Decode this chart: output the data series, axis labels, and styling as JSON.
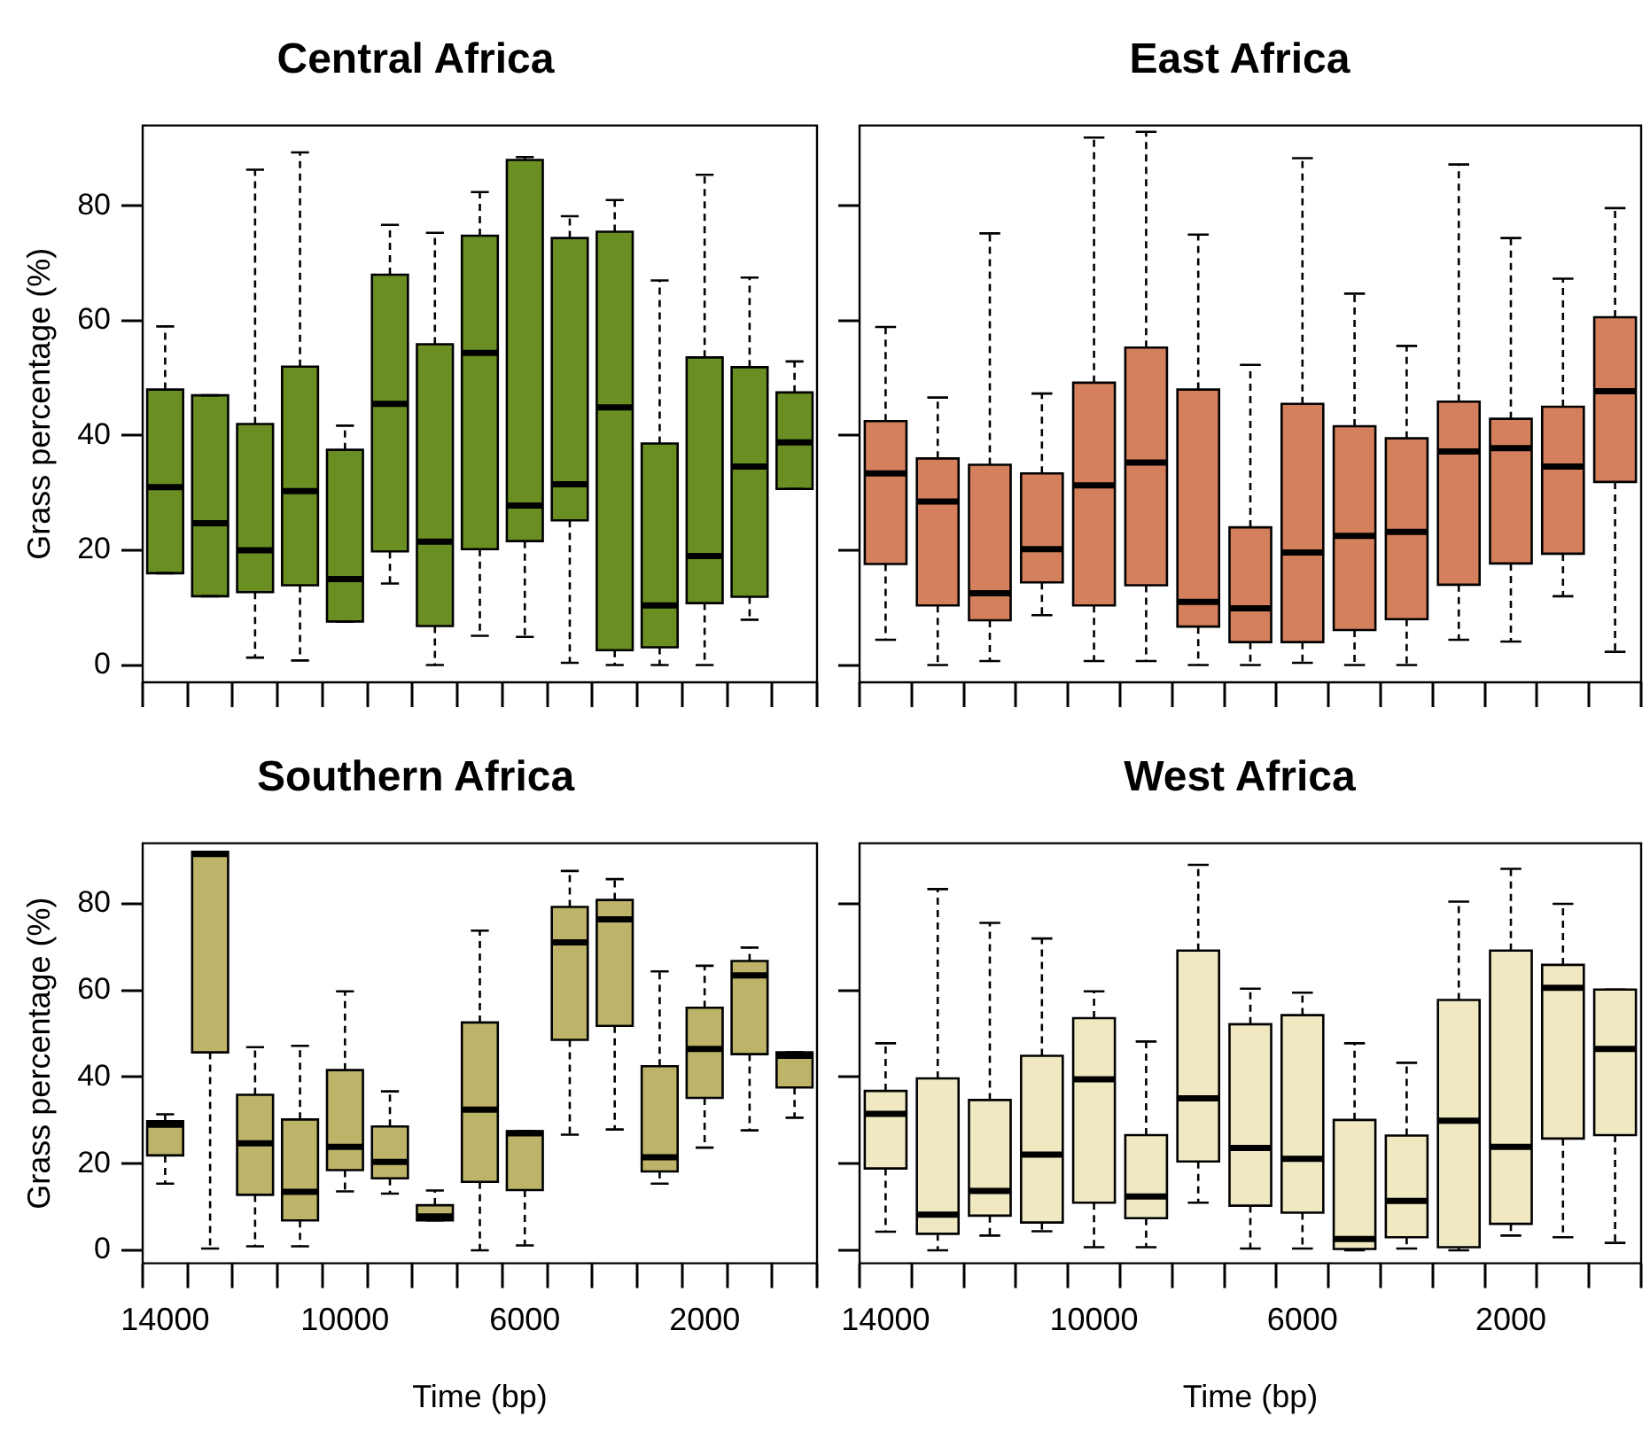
{
  "chart_data": [
    {
      "type": "box",
      "title": "Central Africa",
      "ylabel": "Grass percentage (%)",
      "categories": [
        "14000",
        null,
        null,
        null,
        "10000",
        null,
        null,
        null,
        "6000",
        null,
        null,
        null,
        "2000",
        null,
        null
      ],
      "color": "#6b8e23",
      "ylim": [
        -3,
        94
      ],
      "yticks": [
        0,
        20,
        40,
        60,
        80
      ],
      "tick_labels": "y",
      "boxes": [
        {
          "low": 16,
          "q1": 16,
          "median": 31,
          "q3": 48,
          "high": 59
        },
        {
          "low": 12,
          "q1": 12,
          "median": 24.7,
          "q3": 47,
          "high": 47
        },
        {
          "low": 1.3,
          "q1": 12.7,
          "median": 20,
          "q3": 42,
          "high": 86.3
        },
        {
          "low": 0.8,
          "q1": 13.9,
          "median": 30.3,
          "q3": 52,
          "high": 89.3
        },
        {
          "low": 7.6,
          "q1": 7.6,
          "median": 15,
          "q3": 37.5,
          "high": 41.7
        },
        {
          "low": 14.2,
          "q1": 19.8,
          "median": 45.5,
          "q3": 68,
          "high": 76.7
        },
        {
          "low": 0,
          "q1": 6.8,
          "median": 21.5,
          "q3": 55.9,
          "high": 75.3
        },
        {
          "low": 5.1,
          "q1": 20.2,
          "median": 54.4,
          "q3": 74.8,
          "high": 82.4
        },
        {
          "low": 4.9,
          "q1": 21.6,
          "median": 27.8,
          "q3": 88,
          "high": 88.5
        },
        {
          "low": 0.4,
          "q1": 25.2,
          "median": 31.5,
          "q3": 74.4,
          "high": 78.2
        },
        {
          "low": 0,
          "q1": 2.6,
          "median": 44.9,
          "q3": 75.5,
          "high": 81
        },
        {
          "low": 0,
          "q1": 3.1,
          "median": 10.4,
          "q3": 38.6,
          "high": 67
        },
        {
          "low": 0,
          "q1": 10.8,
          "median": 19,
          "q3": 53.6,
          "high": 85.4
        },
        {
          "low": 7.9,
          "q1": 11.9,
          "median": 34.6,
          "q3": 51.9,
          "high": 67.5
        },
        {
          "low": 30.7,
          "q1": 30.7,
          "median": 38.8,
          "q3": 47.5,
          "high": 52.9
        }
      ]
    },
    {
      "type": "box",
      "title": "East Africa",
      "categories": [
        "14000",
        null,
        null,
        null,
        "10000",
        null,
        null,
        null,
        "6000",
        null,
        null,
        null,
        "2000",
        null,
        null
      ],
      "color": "#d4805c",
      "ylim": [
        -3,
        94
      ],
      "yticks": [
        0,
        20,
        40,
        60,
        80
      ],
      "tick_labels": false,
      "boxes": [
        {
          "low": 4.4,
          "q1": 17.6,
          "median": 33.4,
          "q3": 42.5,
          "high": 58.9
        },
        {
          "low": 0,
          "q1": 10.4,
          "median": 28.5,
          "q3": 36,
          "high": 46.6
        },
        {
          "low": 0.7,
          "q1": 7.8,
          "median": 12.5,
          "q3": 34.9,
          "high": 75.2
        },
        {
          "low": 8.7,
          "q1": 14.4,
          "median": 20.2,
          "q3": 33.4,
          "high": 47.3
        },
        {
          "low": 0.7,
          "q1": 10.4,
          "median": 31.3,
          "q3": 49.2,
          "high": 91.9
        },
        {
          "low": 0.7,
          "q1": 13.9,
          "median": 35.3,
          "q3": 55.3,
          "high": 92.9
        },
        {
          "low": 0,
          "q1": 6.7,
          "median": 11,
          "q3": 48,
          "high": 75
        },
        {
          "low": 0,
          "q1": 4,
          "median": 9.9,
          "q3": 24,
          "high": 52.3
        },
        {
          "low": 0.4,
          "q1": 4,
          "median": 19.6,
          "q3": 45.5,
          "high": 88.3
        },
        {
          "low": 0,
          "q1": 6.1,
          "median": 22.5,
          "q3": 41.6,
          "high": 64.7
        },
        {
          "low": 0,
          "q1": 8,
          "median": 23.2,
          "q3": 39.5,
          "high": 55.6
        },
        {
          "low": 4.4,
          "q1": 14,
          "median": 37.2,
          "q3": 45.9,
          "high": 87.2
        },
        {
          "low": 4.1,
          "q1": 17.7,
          "median": 37.8,
          "q3": 42.9,
          "high": 74.4
        },
        {
          "low": 12,
          "q1": 19.4,
          "median": 34.6,
          "q3": 45,
          "high": 67.3
        },
        {
          "low": 2.3,
          "q1": 31.9,
          "median": 47.7,
          "q3": 60.6,
          "high": 79.6
        }
      ]
    },
    {
      "type": "box",
      "title": "Southern Africa",
      "xlabel": "Time (bp)",
      "ylabel": "Grass percentage (%)",
      "categories": [
        "14000",
        null,
        null,
        null,
        "10000",
        null,
        null,
        null,
        "6000",
        null,
        null,
        null,
        "2000",
        null,
        null
      ],
      "color": "#bdb46a",
      "ylim": [
        -3,
        94
      ],
      "yticks": [
        0,
        20,
        40,
        60,
        80
      ],
      "boxes": [
        {
          "low": 15.4,
          "q1": 21.9,
          "median": 29,
          "q3": 29.8,
          "high": 31.4
        },
        {
          "low": 0.4,
          "q1": 45.7,
          "median": 91.5,
          "q3": 92,
          "high": 92
        },
        {
          "low": 0.9,
          "q1": 12.8,
          "median": 24.7,
          "q3": 35.9,
          "high": 46.9
        },
        {
          "low": 0.9,
          "q1": 6.9,
          "median": 13.5,
          "q3": 30.2,
          "high": 47.2
        },
        {
          "low": 13.6,
          "q1": 18.5,
          "median": 23.9,
          "q3": 41.6,
          "high": 59.8
        },
        {
          "low": 13.1,
          "q1": 16.6,
          "median": 20.4,
          "q3": 28.6,
          "high": 36.7
        },
        {
          "low": 6.9,
          "q1": 6.9,
          "median": 7.8,
          "q3": 10.4,
          "high": 13.8
        },
        {
          "low": 0,
          "q1": 15.8,
          "median": 32.5,
          "q3": 52.6,
          "high": 73.8
        },
        {
          "low": 1.1,
          "q1": 13.9,
          "median": 27,
          "q3": 27.5,
          "high": 27.5
        },
        {
          "low": 26.7,
          "q1": 48.6,
          "median": 71.1,
          "q3": 79.3,
          "high": 87.6
        },
        {
          "low": 27.9,
          "q1": 51.8,
          "median": 76.4,
          "q3": 80.9,
          "high": 85.7
        },
        {
          "low": 15.4,
          "q1": 18.2,
          "median": 21.5,
          "q3": 42.5,
          "high": 64.4
        },
        {
          "low": 23.7,
          "q1": 35.2,
          "median": 46.5,
          "q3": 56,
          "high": 65.7
        },
        {
          "low": 27.7,
          "q1": 45.3,
          "median": 63.5,
          "q3": 66.8,
          "high": 69.9
        },
        {
          "low": 30.6,
          "q1": 37.6,
          "median": 44.9,
          "q3": 45.7,
          "high": 45.7
        }
      ]
    },
    {
      "type": "box",
      "title": "West Africa",
      "xlabel": "Time (bp)",
      "categories": [
        "14000",
        null,
        null,
        null,
        "10000",
        null,
        null,
        null,
        "6000",
        null,
        null,
        null,
        "2000",
        null,
        null
      ],
      "color": "#efe8c0",
      "ylim": [
        -3,
        94
      ],
      "yticks": [
        0,
        20,
        40,
        60,
        80
      ],
      "tick_labels": "x",
      "boxes": [
        {
          "low": 4.3,
          "q1": 18.9,
          "median": 31.5,
          "q3": 36.8,
          "high": 47.8
        },
        {
          "low": 0,
          "q1": 3.8,
          "median": 8.2,
          "q3": 39.7,
          "high": 83.4
        },
        {
          "low": 3.4,
          "q1": 8,
          "median": 13.7,
          "q3": 34.7,
          "high": 75.6
        },
        {
          "low": 4.4,
          "q1": 6.4,
          "median": 22.1,
          "q3": 44.9,
          "high": 72
        },
        {
          "low": 0.7,
          "q1": 11,
          "median": 39.5,
          "q3": 53.6,
          "high": 59.8
        },
        {
          "low": 0.7,
          "q1": 7.4,
          "median": 12.4,
          "q3": 26.6,
          "high": 48.2
        },
        {
          "low": 11,
          "q1": 20.5,
          "median": 35.1,
          "q3": 69.2,
          "high": 89
        },
        {
          "low": 0.4,
          "q1": 10.3,
          "median": 23.6,
          "q3": 52.2,
          "high": 60.4
        },
        {
          "low": 0.4,
          "q1": 8.7,
          "median": 21.1,
          "q3": 54.3,
          "high": 59.5
        },
        {
          "low": 0,
          "q1": 0.3,
          "median": 2.6,
          "q3": 30.1,
          "high": 47.8
        },
        {
          "low": 0.4,
          "q1": 3,
          "median": 11.4,
          "q3": 26.5,
          "high": 43.3
        },
        {
          "low": 0,
          "q1": 0.7,
          "median": 29.9,
          "q3": 57.8,
          "high": 80.5
        },
        {
          "low": 3.4,
          "q1": 6.1,
          "median": 23.9,
          "q3": 69.2,
          "high": 88.1
        },
        {
          "low": 3,
          "q1": 25.8,
          "median": 60.6,
          "q3": 65.9,
          "high": 80
        },
        {
          "low": 1.7,
          "q1": 26.6,
          "median": 46.5,
          "q3": 60.2,
          "high": 60.2
        }
      ]
    }
  ]
}
